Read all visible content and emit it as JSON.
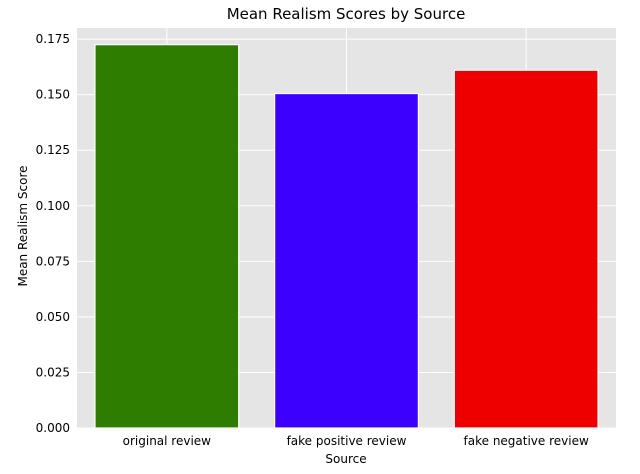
{
  "chart_data": {
    "type": "bar",
    "title": "Mean Realism Scores by Source",
    "xlabel": "Source",
    "ylabel": "Mean Realism Score",
    "categories": [
      "original review",
      "fake positive review",
      "fake negative review"
    ],
    "values": [
      0.1725,
      0.1505,
      0.161
    ],
    "bar_colors": [
      "#2e7d00",
      "#3b00ff",
      "#ee0000"
    ],
    "ylim": [
      0,
      0.18
    ],
    "yticks": [
      0.0,
      0.025,
      0.05,
      0.075,
      0.1,
      0.125,
      0.15,
      0.175
    ],
    "ytick_labels": [
      "0.000",
      "0.025",
      "0.050",
      "0.075",
      "0.100",
      "0.125",
      "0.150",
      "0.175"
    ],
    "grid": true,
    "background_color": "#e5e5e5"
  }
}
